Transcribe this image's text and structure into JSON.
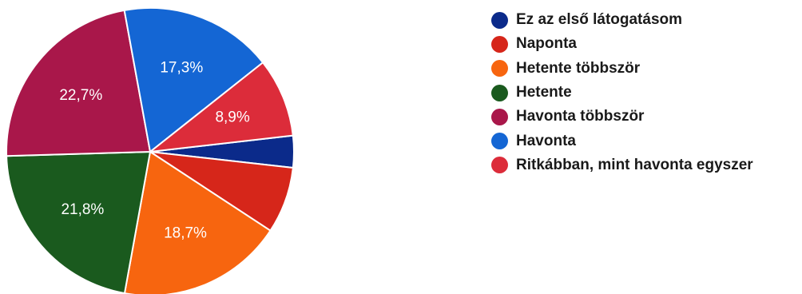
{
  "chart_data": {
    "type": "pie",
    "title": "",
    "legend_position": "right",
    "slices": [
      {
        "label": "Ez az első látogatásom",
        "value": 3.6,
        "color": "#0b2a8a",
        "value_label": ""
      },
      {
        "label": "Naponta",
        "value": 7.5,
        "color": "#d6261a",
        "value_label": ""
      },
      {
        "label": "Hetente többször",
        "value": 18.7,
        "color": "#f7650f",
        "value_label": "18,7%"
      },
      {
        "label": "Hetente",
        "value": 21.8,
        "color": "#1a5a1e",
        "value_label": "21,8%"
      },
      {
        "label": "Havonta többször",
        "value": 22.7,
        "color": "#a9174a",
        "value_label": "22,7%"
      },
      {
        "label": "Havonta",
        "value": 17.3,
        "color": "#1466d4",
        "value_label": "17,3%"
      },
      {
        "label": "Ritkábban, mint havonta egyszer",
        "value": 8.9,
        "color": "#dc2c3a",
        "value_label": "8,9%"
      }
    ]
  }
}
